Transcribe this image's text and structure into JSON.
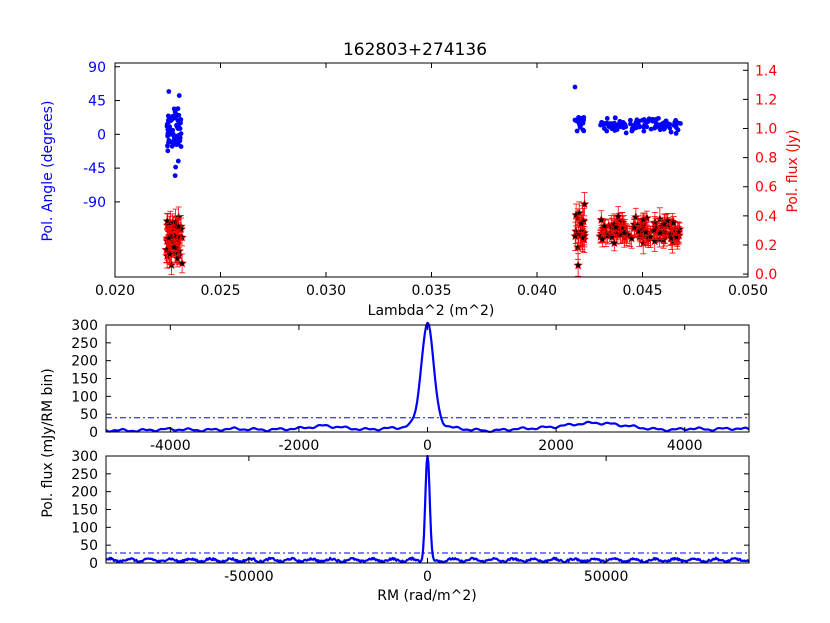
{
  "colors": {
    "angle": "#0000ff",
    "flux_marker": "#000000",
    "flux_error": "#ff0000",
    "rm_curve": "#0000ff",
    "threshold": "#0000ff",
    "axes": "#000000"
  },
  "chart_data": [
    {
      "id": "polarization-vs-lambda2",
      "type": "scatter",
      "title": "162803+274136",
      "xlabel": "Lambda^2 (m^2)",
      "xlim": [
        0.02,
        0.05
      ],
      "x_ticks": [
        "0.020",
        "0.025",
        "0.030",
        "0.035",
        "0.040",
        "0.045",
        "0.050"
      ],
      "y_left": {
        "label": "Pol. Angle (degrees)",
        "ylim": [
          -190,
          95
        ],
        "ticks": [
          "90",
          "45",
          "0",
          "-45",
          "-90"
        ],
        "tick_values": [
          90,
          45,
          0,
          -45,
          -90
        ],
        "color": "#0000ff"
      },
      "y_right": {
        "label": "Pol. flux (Jy)",
        "ylim": [
          -0.02,
          1.45
        ],
        "ticks": [
          "0.0",
          "0.2",
          "0.4",
          "0.6",
          "0.8",
          "1.0",
          "1.2",
          "1.4"
        ],
        "tick_values": [
          0.0,
          0.2,
          0.4,
          0.6,
          0.8,
          1.0,
          1.2,
          1.4
        ],
        "color": "#ff0000"
      },
      "series": [
        {
          "role": "angle",
          "marker": "dot",
          "groups": [
            {
              "x_range": [
                0.02245,
                0.02315
              ],
              "count": 60,
              "y_center": 5,
              "y_spread": 28
            },
            {
              "x_range": [
                0.0418,
                0.04225
              ],
              "count": 18,
              "y_center": 12,
              "y_spread": 12
            },
            {
              "x_range": [
                0.043,
                0.0468
              ],
              "count": 110,
              "y_center": 12,
              "y_spread": 7
            }
          ],
          "outliers": [
            {
              "x": 0.02255,
              "y": 57
            },
            {
              "x": 0.0418,
              "y": 63
            },
            {
              "x": 0.02285,
              "y": -55
            }
          ]
        },
        {
          "role": "flux",
          "marker": "star",
          "error_bars": true,
          "groups": [
            {
              "x_range": [
                0.0224,
                0.0232
              ],
              "count": 70,
              "y_center": 0.25,
              "y_spread": 0.13,
              "err": 0.07
            },
            {
              "x_range": [
                0.0418,
                0.04225
              ],
              "count": 20,
              "y_center": 0.29,
              "y_spread": 0.1,
              "err": 0.08
            },
            {
              "x_range": [
                0.043,
                0.0468
              ],
              "count": 120,
              "y_center": 0.3,
              "y_spread": 0.06,
              "err": 0.06
            }
          ],
          "outliers": [
            {
              "x": 0.04225,
              "y": 0.48
            },
            {
              "x": 0.04195,
              "y": 0.06
            }
          ]
        }
      ]
    },
    {
      "id": "faraday-spectrum-narrow",
      "type": "line",
      "xlim": [
        -5000,
        5000
      ],
      "ylim": [
        0,
        300
      ],
      "x_ticks": [
        "-4000",
        "-2000",
        "0",
        "2000",
        "4000"
      ],
      "x_tick_values": [
        -4000,
        -2000,
        0,
        2000,
        4000
      ],
      "y_ticks": [
        "0",
        "50",
        "100",
        "150",
        "200",
        "250",
        "300"
      ],
      "y_tick_values": [
        0,
        50,
        100,
        150,
        200,
        250,
        300
      ],
      "threshold": 40,
      "peak": {
        "x": 0,
        "y": 285,
        "half_width": 110
      },
      "background": [
        [
          -5000,
          5
        ],
        [
          -4500,
          4
        ],
        [
          -4000,
          8
        ],
        [
          -3500,
          5
        ],
        [
          -3000,
          9
        ],
        [
          -2500,
          6
        ],
        [
          -2000,
          10
        ],
        [
          -1600,
          18
        ],
        [
          -1300,
          12
        ],
        [
          -1000,
          7
        ],
        [
          -700,
          9
        ],
        [
          -400,
          13
        ],
        [
          -200,
          22
        ],
        [
          200,
          20
        ],
        [
          400,
          12
        ],
        [
          700,
          6
        ],
        [
          1000,
          3
        ],
        [
          1300,
          8
        ],
        [
          1600,
          10
        ],
        [
          2000,
          15
        ],
        [
          2300,
          22
        ],
        [
          2600,
          26
        ],
        [
          2900,
          22
        ],
        [
          3200,
          15
        ],
        [
          3500,
          8
        ],
        [
          3800,
          6
        ],
        [
          4100,
          10
        ],
        [
          4400,
          7
        ],
        [
          4700,
          10
        ],
        [
          5000,
          8
        ]
      ]
    },
    {
      "id": "faraday-spectrum-wide",
      "type": "line",
      "xlabel": "RM (rad/m^2)",
      "xlim": [
        -90000,
        90000
      ],
      "ylim": [
        0,
        300
      ],
      "x_ticks": [
        "-50000",
        "0",
        "50000"
      ],
      "x_tick_values": [
        -50000,
        0,
        50000
      ],
      "y_ticks": [
        "0",
        "50",
        "100",
        "150",
        "200",
        "250",
        "300"
      ],
      "y_tick_values": [
        0,
        50,
        100,
        150,
        200,
        250,
        300
      ],
      "threshold": 28,
      "peak": {
        "x": 0,
        "y": 300,
        "half_width": 600
      },
      "noise_level": 8
    }
  ],
  "shared": {
    "rm_ylabel": "Pol. flux (mJy/RM bin)"
  }
}
